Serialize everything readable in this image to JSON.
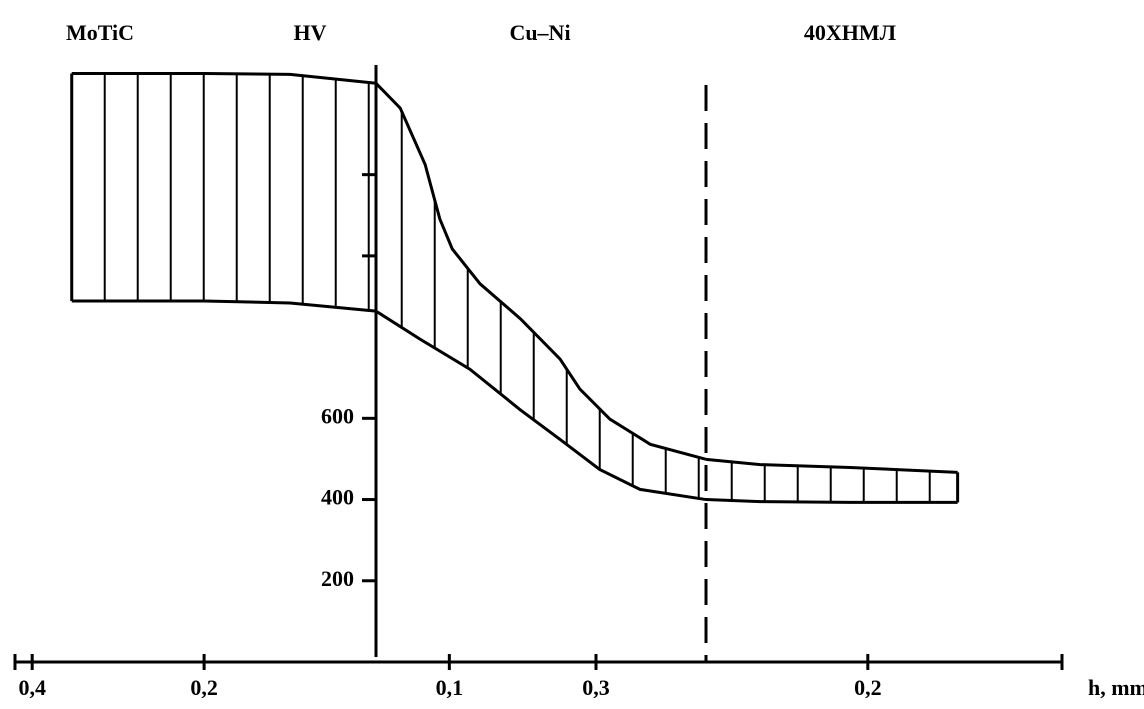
{
  "chart_data": {
    "type": "band",
    "y_label": "HV",
    "x_label": "h, mm",
    "ylim": [
      0,
      1470
    ],
    "yticks": [
      200,
      400,
      600
    ],
    "minor_yticks": [
      1000,
      1200
    ],
    "zones": [
      {
        "name": "MoTiC",
        "xlim": [
          0.42,
          0
        ],
        "xticks": [
          {
            "value": 0.4,
            "label": "0,4"
          },
          {
            "value": 0.2,
            "label": "0,2"
          }
        ],
        "x_upper": [
          0.354,
          0.2,
          0.1,
          0
        ],
        "upper": [
          1449,
          1449,
          1447,
          1425
        ],
        "x_lower": [
          0.354,
          0.2,
          0.1,
          0
        ],
        "lower": [
          889,
          889,
          884,
          864
        ]
      },
      {
        "name": "Cu–Ni",
        "xlim": [
          0,
          0.45
        ],
        "xticks": [
          {
            "value": 0.1,
            "label": "0,1"
          },
          {
            "value": 0.3,
            "label": "0,3"
          }
        ],
        "x_upper": [
          0,
          0.033,
          0.067,
          0.087,
          0.104,
          0.142,
          0.197,
          0.251,
          0.278,
          0.319,
          0.374,
          0.45
        ],
        "upper": [
          1425,
          1364,
          1225,
          1091,
          1017,
          931,
          845,
          746,
          672,
          598,
          536,
          499
        ],
        "x_lower": [
          0,
          0.06,
          0.128,
          0.196,
          0.251,
          0.305,
          0.36,
          0.45
        ],
        "lower": [
          864,
          795,
          721,
          622,
          548,
          474,
          425,
          400
        ]
      },
      {
        "name": "40ХНМЛ",
        "xlim": [
          0,
          0.44
        ],
        "xticks": [
          {
            "value": 0.2,
            "label": "0,2"
          }
        ],
        "x_upper": [
          0,
          0.067,
          0.178,
          0.311
        ],
        "upper": [
          499,
          486,
          479,
          467
        ],
        "x_lower": [
          0,
          0.067,
          0.178,
          0.311
        ],
        "lower": [
          400,
          395,
          393,
          393
        ]
      }
    ]
  }
}
